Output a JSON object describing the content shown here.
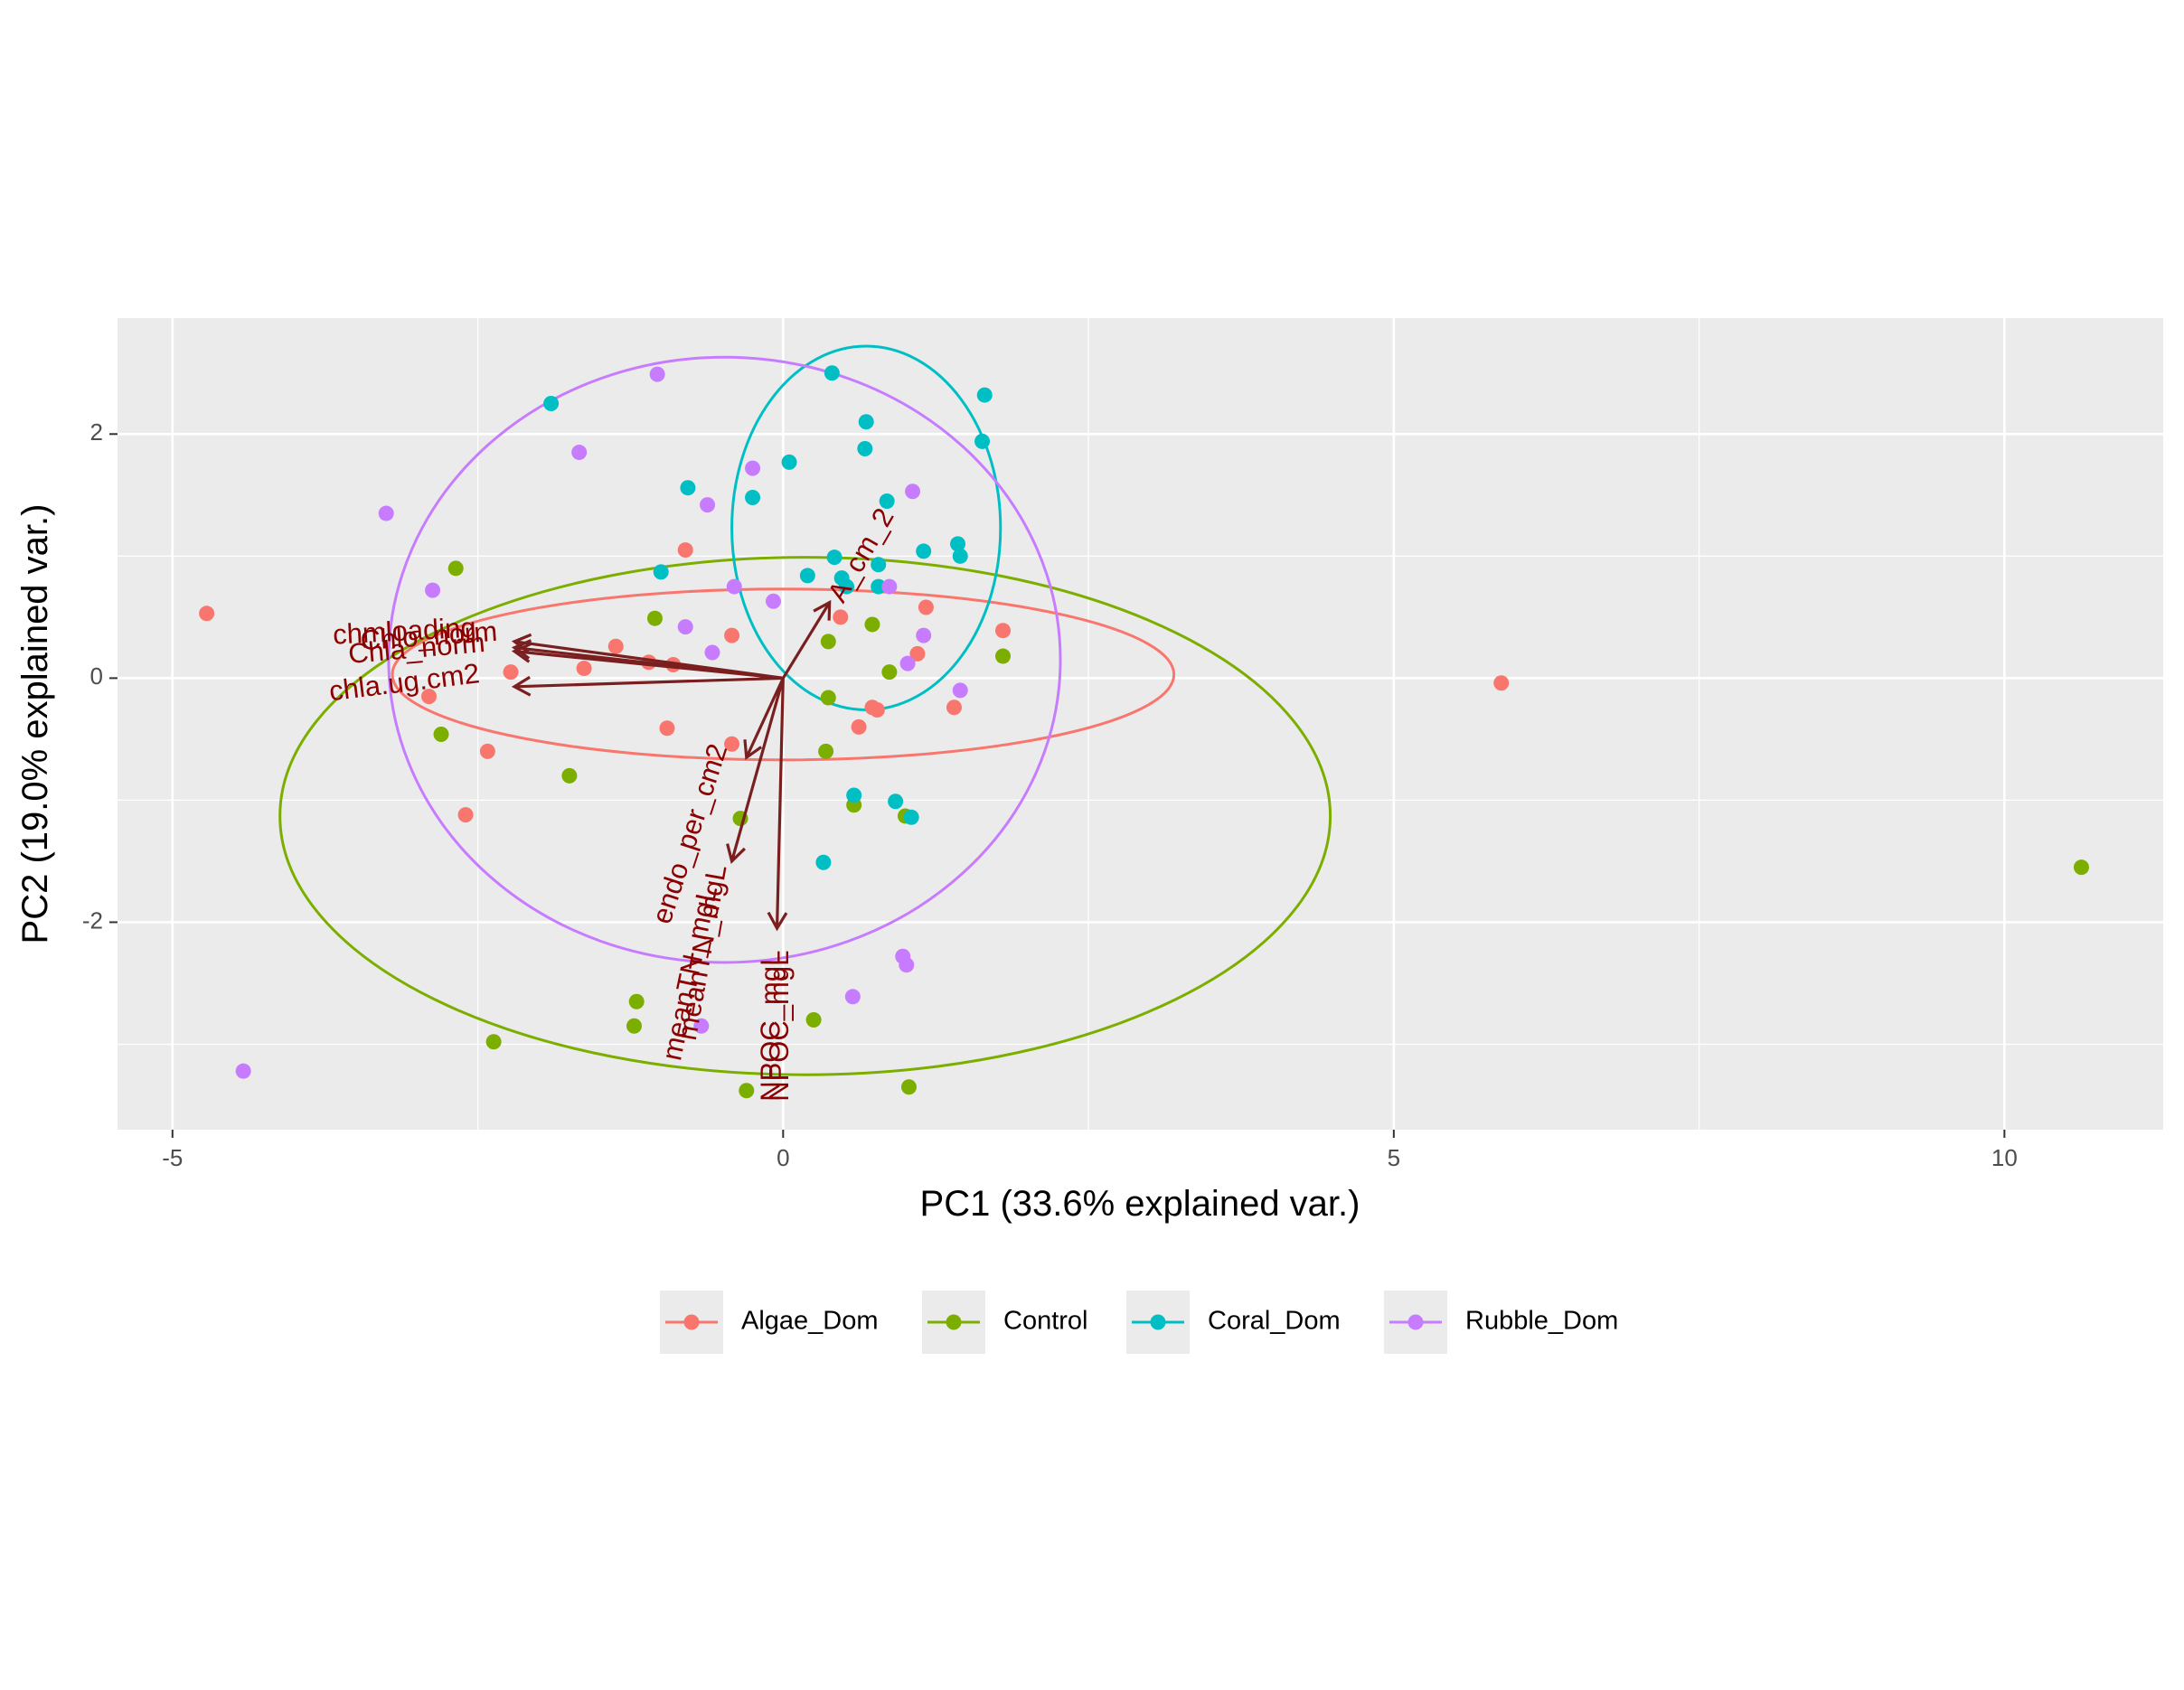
{
  "chart_data": {
    "type": "scatter",
    "title": "",
    "xlabel": "PC1 (33.6% explained var.)",
    "ylabel": "PC2 (19.0% explained var.)",
    "xlim": [
      -5.45,
      11.3
    ],
    "ylim": [
      -3.7,
      2.95
    ],
    "x_ticks": [
      -5,
      0,
      5,
      10
    ],
    "x_tick_labels": [
      "-5",
      "0",
      "5",
      "10"
    ],
    "y_ticks": [
      -2,
      0,
      2
    ],
    "y_tick_labels": [
      "-2",
      "0",
      "2"
    ],
    "x_minor": [
      -2.5,
      2.5,
      7.5
    ],
    "y_minor": [
      -3,
      -1,
      1
    ],
    "grid": true,
    "legend": {
      "position": "bottom",
      "title": ""
    },
    "colors": {
      "Algae_Dom": "#F8766D",
      "Control": "#7CAE00",
      "Coral_Dom": "#00BFC4",
      "Rubble_Dom": "#C77CFF",
      "arrow": "#7a1f1f",
      "arrow_label": "#8b0000",
      "panel": "#ebebeb",
      "grid": "#ffffff"
    },
    "series": [
      {
        "name": "Algae_Dom",
        "points": [
          [
            -4.72,
            0.53
          ],
          [
            -0.8,
            1.05
          ],
          [
            -1.37,
            0.26
          ],
          [
            -0.42,
            0.35
          ],
          [
            -1.1,
            0.13
          ],
          [
            -0.9,
            0.11
          ],
          [
            -1.63,
            0.08
          ],
          [
            -2.23,
            0.05
          ],
          [
            -2.9,
            -0.15
          ],
          [
            -0.95,
            -0.41
          ],
          [
            -0.42,
            -0.54
          ],
          [
            -2.42,
            -0.6
          ],
          [
            -2.6,
            -1.12
          ],
          [
            0.47,
            0.5
          ],
          [
            1.17,
            0.58
          ],
          [
            1.1,
            0.2
          ],
          [
            0.73,
            -0.24
          ],
          [
            0.77,
            -0.26
          ],
          [
            0.62,
            -0.4
          ],
          [
            1.4,
            -0.24
          ],
          [
            1.8,
            0.39
          ],
          [
            5.88,
            -0.04
          ]
        ]
      },
      {
        "name": "Control",
        "points": [
          [
            -2.68,
            0.9
          ],
          [
            -1.05,
            0.49
          ],
          [
            -2.8,
            -0.46
          ],
          [
            -1.75,
            -0.8
          ],
          [
            -0.35,
            -1.15
          ],
          [
            -1.2,
            -2.65
          ],
          [
            -1.22,
            -2.85
          ],
          [
            -2.37,
            -2.98
          ],
          [
            -0.3,
            -3.38
          ],
          [
            0.25,
            -2.8
          ],
          [
            0.37,
            0.3
          ],
          [
            0.73,
            0.44
          ],
          [
            0.87,
            0.05
          ],
          [
            0.37,
            -0.16
          ],
          [
            0.35,
            -0.6
          ],
          [
            0.58,
            -1.04
          ],
          [
            1.0,
            -1.13
          ],
          [
            1.03,
            -3.35
          ],
          [
            1.8,
            0.18
          ],
          [
            10.63,
            -1.55
          ]
        ]
      },
      {
        "name": "Coral_Dom",
        "points": [
          [
            -1.9,
            2.25
          ],
          [
            -0.78,
            1.56
          ],
          [
            -1.0,
            0.87
          ],
          [
            -0.25,
            1.48
          ],
          [
            0.05,
            1.77
          ],
          [
            0.4,
            2.5
          ],
          [
            0.68,
            2.1
          ],
          [
            0.67,
            1.88
          ],
          [
            0.85,
            1.45
          ],
          [
            1.65,
            2.32
          ],
          [
            1.63,
            1.94
          ],
          [
            1.43,
            1.1
          ],
          [
            1.45,
            1.0
          ],
          [
            1.15,
            1.04
          ],
          [
            0.78,
            0.93
          ],
          [
            0.42,
            0.99
          ],
          [
            0.2,
            0.84
          ],
          [
            0.48,
            0.82
          ],
          [
            0.52,
            0.75
          ],
          [
            0.78,
            0.75
          ],
          [
            0.58,
            -0.96
          ],
          [
            0.92,
            -1.01
          ],
          [
            1.05,
            -1.14
          ],
          [
            0.33,
            -1.51
          ]
        ]
      },
      {
        "name": "Rubble_Dom",
        "points": [
          [
            -1.03,
            2.49
          ],
          [
            -1.67,
            1.85
          ],
          [
            -3.25,
            1.35
          ],
          [
            -2.87,
            0.72
          ],
          [
            -0.25,
            1.72
          ],
          [
            -0.62,
            1.42
          ],
          [
            1.06,
            1.53
          ],
          [
            -0.4,
            0.75
          ],
          [
            -0.08,
            0.63
          ],
          [
            -0.8,
            0.42
          ],
          [
            -0.58,
            0.21
          ],
          [
            0.87,
            0.75
          ],
          [
            1.15,
            0.35
          ],
          [
            1.02,
            0.12
          ],
          [
            1.45,
            -0.1
          ],
          [
            -0.67,
            -2.85
          ],
          [
            0.57,
            -2.61
          ],
          [
            0.98,
            -2.28
          ],
          [
            1.01,
            -2.35
          ],
          [
            -4.42,
            -3.22
          ]
        ]
      }
    ],
    "ellipses": [
      {
        "name": "Algae_Dom",
        "center": [
          0.0,
          0.03
        ],
        "semi_axes": [
          3.2,
          0.7
        ]
      },
      {
        "name": "Control",
        "center": [
          0.18,
          -1.13
        ],
        "semi_axes": [
          4.3,
          2.12
        ]
      },
      {
        "name": "Coral_Dom",
        "center": [
          0.68,
          1.23
        ],
        "semi_axes": [
          1.1,
          1.49
        ]
      },
      {
        "name": "Rubble_Dom",
        "center": [
          -0.48,
          0.15
        ],
        "semi_axes": [
          2.75,
          2.48
        ]
      }
    ],
    "loadings": [
      {
        "label": "chmloading",
        "end": [
          -2.2,
          0.3
        ]
      },
      {
        "label": "Chlo_norm",
        "end": [
          -2.2,
          0.25
        ]
      },
      {
        "label": "Chla_norm",
        "end": [
          -2.2,
          0.22
        ]
      },
      {
        "label": "chla.ug.cm2",
        "end": [
          -2.2,
          -0.07
        ]
      },
      {
        "label": "A_cm_2",
        "end": [
          0.38,
          0.62
        ]
      },
      {
        "label": "endo_per_cm2",
        "end": [
          -0.3,
          -0.65
        ]
      },
      {
        "label": "meanTN_mgL",
        "end": [
          -0.42,
          -1.5
        ]
      },
      {
        "label": "NPOC_mgL",
        "end": [
          -0.05,
          -2.05
        ]
      }
    ],
    "loading_label_marks": [
      {
        "text": "chmloading",
        "pos": [
          -3.1,
          0.37
        ],
        "angle": -3
      },
      {
        "text": "Chlo_norm",
        "pos": [
          -2.9,
          0.33
        ],
        "angle": -4
      },
      {
        "text": "Chla_norm",
        "pos": [
          -3.0,
          0.23
        ],
        "angle": -5
      },
      {
        "text": "chla.ug.cm2",
        "pos": [
          -3.1,
          -0.05
        ],
        "angle": -7
      },
      {
        "text": "A_cm_2",
        "pos": [
          0.65,
          1.0
        ],
        "angle": -60
      },
      {
        "text": "endo_per_cm2",
        "pos": [
          -0.75,
          -1.28
        ],
        "angle": -72
      },
      {
        "text": "meanTN_mgL",
        "pos": [
          -0.75,
          -2.42
        ],
        "angle": -78
      },
      {
        "text": "meanTN_mgL",
        "pos": [
          -0.65,
          -2.25
        ],
        "angle": -80
      },
      {
        "text": "NPOC_mgL",
        "pos": [
          -0.02,
          -2.85
        ],
        "angle": -90
      },
      {
        "text": "NPOC_mgL",
        "pos": [
          -0.09,
          -2.85
        ],
        "angle": -90
      }
    ]
  }
}
